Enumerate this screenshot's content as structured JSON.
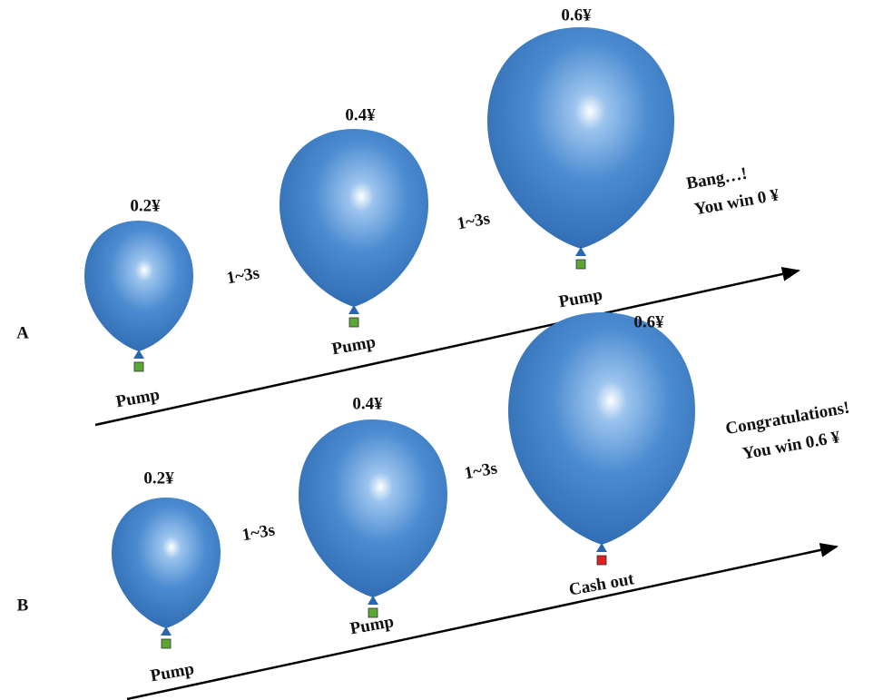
{
  "rows": [
    {
      "label": "A",
      "steps": [
        {
          "amount": "0.2¥",
          "action": "Pump"
        },
        {
          "amount": "0.4¥",
          "action": "Pump"
        },
        {
          "amount": "0.6¥",
          "action": "Pump"
        }
      ],
      "intervals": [
        "1~3s",
        "1~3s"
      ],
      "outcome": [
        "Bang…!",
        "You win 0 ¥"
      ]
    },
    {
      "label": "B",
      "steps": [
        {
          "amount": "0.2¥",
          "action": "Pump"
        },
        {
          "amount": "0.4¥",
          "action": "Pump"
        },
        {
          "amount": "0.6¥",
          "action": "Cash out"
        }
      ],
      "intervals": [
        "1~3s",
        "1~3s"
      ],
      "outcome": [
        "Congratulations!",
        "You win 0.6 ¥"
      ]
    }
  ]
}
